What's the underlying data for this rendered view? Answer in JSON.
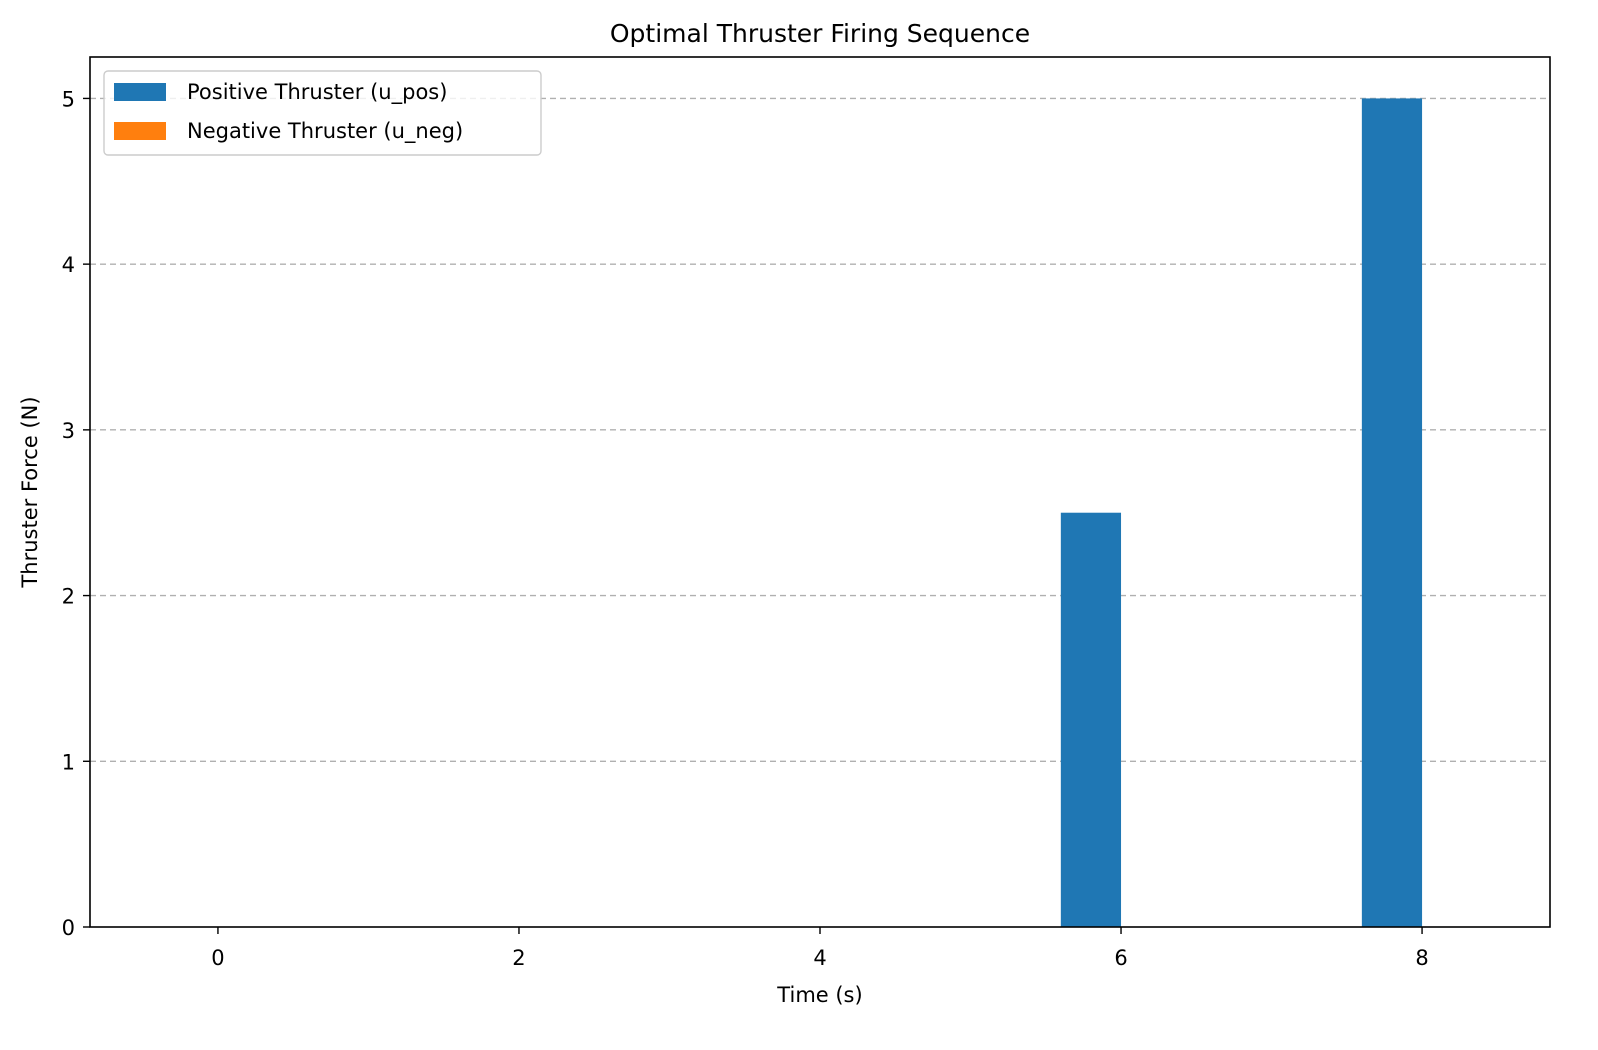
{
  "chart_data": {
    "type": "bar",
    "title": "Optimal Thruster Firing Sequence",
    "xlabel": "Time (s)",
    "ylabel": "Thruster Force (N)",
    "x": [
      0,
      1,
      2,
      3,
      4,
      5,
      6,
      7,
      8
    ],
    "xlim": [
      -0.85,
      8.85
    ],
    "ylim": [
      0,
      5.25
    ],
    "xticks": [
      0,
      2,
      4,
      6,
      8
    ],
    "yticks": [
      0,
      1,
      2,
      3,
      4,
      5
    ],
    "bar_width": 0.4,
    "grid": {
      "axis": "y",
      "style": "dashed"
    },
    "legend_position": "upper left",
    "series": [
      {
        "name": "Positive Thruster (u_pos)",
        "color": "#1f77b4",
        "values": [
          0,
          0,
          0,
          0,
          0,
          0,
          2.5,
          0,
          5
        ]
      },
      {
        "name": "Negative Thruster (u_neg)",
        "color": "#ff7f0e",
        "values": [
          0,
          0,
          0,
          0,
          0,
          0,
          0,
          0,
          0
        ]
      }
    ]
  }
}
